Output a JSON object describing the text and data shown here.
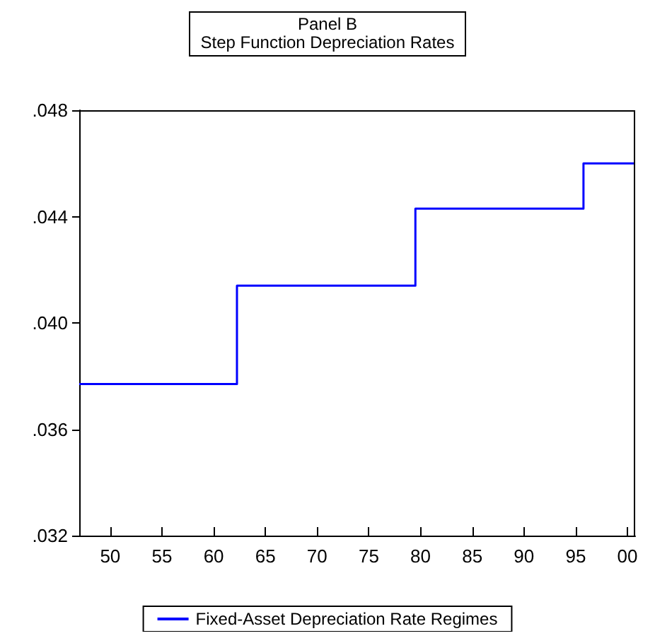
{
  "chart_data": {
    "type": "step",
    "title": "Panel B",
    "subtitle": "Step Function Depreciation Rates",
    "x": [
      1947,
      1962.25,
      1979.5,
      1995.75,
      2000.75
    ],
    "series": [
      {
        "name": "Fixed-Asset Depreciation Rate Regimes",
        "color": "#0000ff",
        "values": [
          0.0377,
          0.0414,
          0.0443,
          0.046,
          0.046
        ]
      }
    ],
    "xlim": [
      1947,
      2000.75
    ],
    "xticks": [
      {
        "value": 1950,
        "label": "50"
      },
      {
        "value": 1955,
        "label": "55"
      },
      {
        "value": 1960,
        "label": "60"
      },
      {
        "value": 1965,
        "label": "65"
      },
      {
        "value": 1970,
        "label": "70"
      },
      {
        "value": 1975,
        "label": "75"
      },
      {
        "value": 1980,
        "label": "80"
      },
      {
        "value": 1985,
        "label": "85"
      },
      {
        "value": 1990,
        "label": "90"
      },
      {
        "value": 1995,
        "label": "95"
      },
      {
        "value": 2000,
        "label": "00"
      }
    ],
    "ylim": [
      0.032,
      0.048
    ],
    "yticks": [
      {
        "value": 0.032,
        "label": ".032"
      },
      {
        "value": 0.036,
        "label": ".036"
      },
      {
        "value": 0.04,
        "label": ".040"
      },
      {
        "value": 0.044,
        "label": ".044"
      },
      {
        "value": 0.048,
        "label": ".048"
      }
    ],
    "grid": false,
    "legend": "bottom",
    "marker": "none",
    "line_style": "solid"
  }
}
